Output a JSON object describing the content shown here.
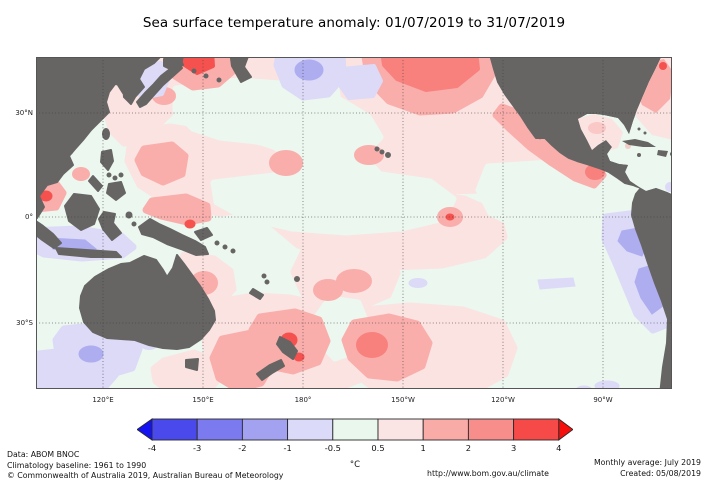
{
  "title": "Sea surface temperature anomaly: 01/07/2019 to 31/07/2019",
  "map": {
    "lat_labels": [
      "30°N",
      "0°",
      "30°S"
    ],
    "lon_labels": [
      "120°E",
      "150°E",
      "180°",
      "150°W",
      "120°W",
      "90°W"
    ]
  },
  "colorbar": {
    "ticks": [
      "-4",
      "-3",
      "-2",
      "-1",
      "-0.5",
      "0.5",
      "1",
      "2",
      "3",
      "4"
    ],
    "unit_label": "°C",
    "segment_colors": [
      "#4a49ec",
      "#7b7aee",
      "#a3a2f1",
      "#dbdaf8",
      "#e9f7ed",
      "#fbe5e4",
      "#f9aba8",
      "#f88e8b",
      "#f54a48"
    ],
    "left_arrow_color": "#1513f2",
    "right_arrow_color": "#f50f0d"
  },
  "palette": {
    "sea_base": "#ebf7ef",
    "pale_pink": "#fbe3e1",
    "medium_pink": "#f9aeab",
    "strong_pink": "#f8817e",
    "red": "#f5524f",
    "lavender": "#dcdaf7",
    "light_blue": "#aeadf0",
    "land": "#666564",
    "grid": "#3f3f3f",
    "frame": "#555555"
  },
  "footer": {
    "data_source": "Data: ABOM BNOC",
    "baseline": "Climatology baseline: 1961 to 1990",
    "copyright": "© Commonwealth of Australia 2019, Australian Bureau of Meteorology",
    "url": "http://www.bom.gov.au/climate",
    "average_period": "Monthly average: July 2019",
    "created": "Created: 05/08/2019"
  }
}
